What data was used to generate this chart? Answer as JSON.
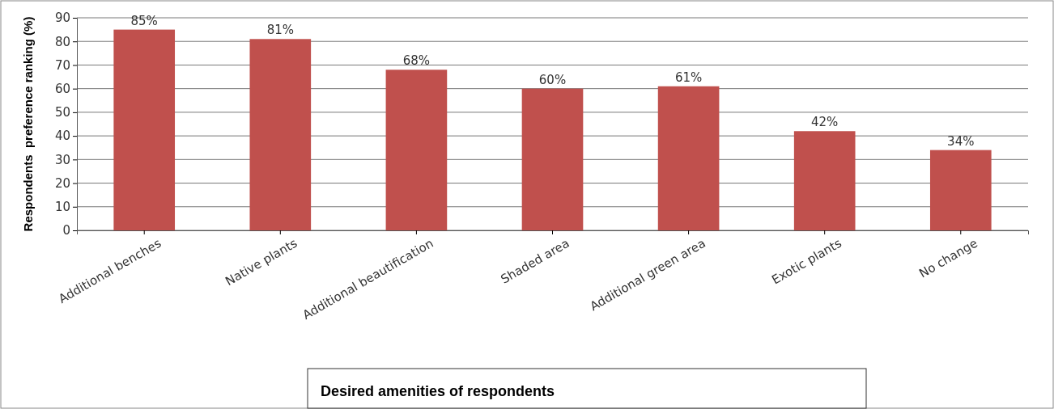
{
  "chart_data": {
    "type": "bar",
    "title": "Desired amenities of respondents",
    "ylabel": "Respondents  preference ranking (%)",
    "categories": [
      "Additional benches",
      "Native plants",
      "Additional beautification",
      "Shaded area",
      "Additional green area",
      "Exotic plants",
      "No change"
    ],
    "values": [
      85,
      81,
      68,
      60,
      61,
      42,
      34
    ],
    "value_labels": [
      "85%",
      "81%",
      "68%",
      "60%",
      "61%",
      "42%",
      "34%"
    ],
    "color": "#c0504d",
    "ylim": [
      0,
      90
    ],
    "yticks": [
      0,
      10,
      20,
      30,
      40,
      50,
      60,
      70,
      80,
      90
    ],
    "grid": "y"
  }
}
